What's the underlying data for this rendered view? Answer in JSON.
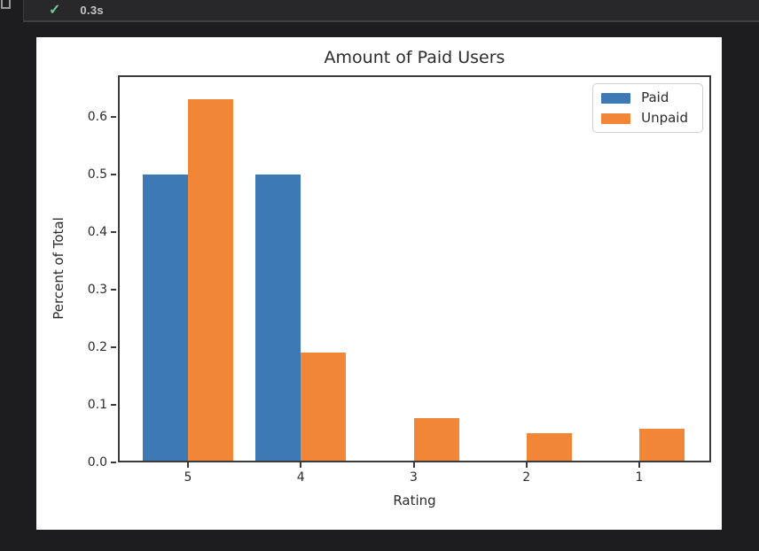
{
  "cell": {
    "status_icon": "check",
    "exec_time": "0.3s"
  },
  "colors": {
    "background": "#1d1d1f",
    "panel": "#28282a",
    "panel_border": "#3e3e44",
    "check_green": "#73c991",
    "paid_blue": "#3d7ab5",
    "unpaid_orange": "#f08636",
    "spine": "#3a3a3a"
  },
  "chart_data": {
    "type": "bar",
    "title": "Amount of Paid Users",
    "xlabel": "Rating",
    "ylabel": "Percent of Total",
    "categories": [
      "5",
      "4",
      "3",
      "2",
      "1"
    ],
    "series": [
      {
        "name": "Paid",
        "color": "#3d7ab5",
        "values": [
          0.5,
          0.5,
          0,
          0,
          0
        ]
      },
      {
        "name": "Unpaid",
        "color": "#f08636",
        "values": [
          0.63,
          0.19,
          0.077,
          0.051,
          0.058
        ]
      }
    ],
    "yticks": [
      0.0,
      0.1,
      0.2,
      0.3,
      0.4,
      0.5,
      0.6
    ],
    "ylim": [
      0,
      0.672
    ],
    "legend_position": "upper right",
    "grid": false
  }
}
